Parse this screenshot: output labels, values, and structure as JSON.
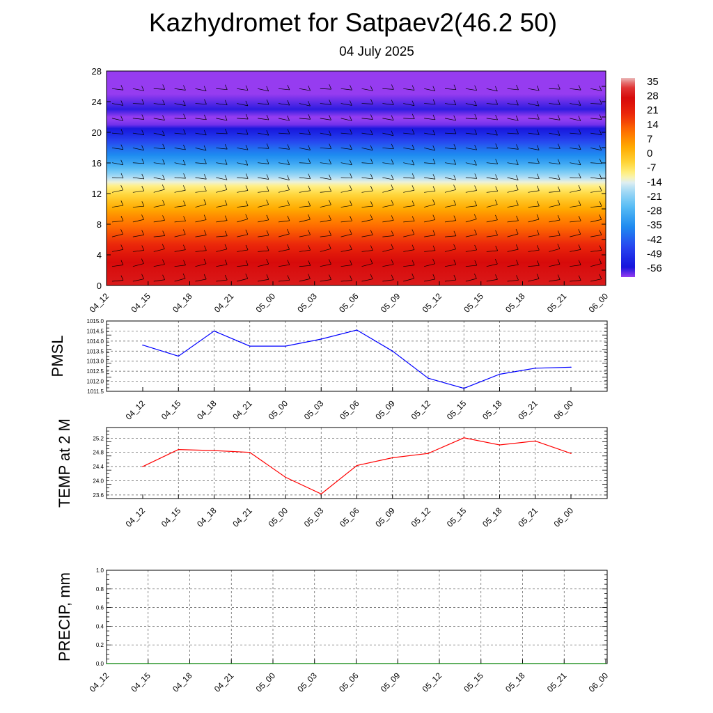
{
  "header": {
    "title": "Kazhydromet for Satpaev2(46.2 50)",
    "subtitle": "04 July 2025"
  },
  "chart_data": [
    {
      "type": "heatmap",
      "title": "",
      "x_ticks": [
        "04_12",
        "04_15",
        "04_18",
        "04_21",
        "05_00",
        "05_03",
        "05_06",
        "05_09",
        "05_12",
        "05_15",
        "05_18",
        "05_21",
        "06_00"
      ],
      "ylim": [
        0,
        28
      ],
      "y_ticks": [
        "0",
        "4",
        "8",
        "12",
        "16",
        "20",
        "24",
        "28"
      ],
      "levels_vs_temperature": [
        {
          "level": 0,
          "value": 30
        },
        {
          "level": 3,
          "value": 28
        },
        {
          "level": 6,
          "value": 18
        },
        {
          "level": 9,
          "value": 8
        },
        {
          "level": 11,
          "value": 0
        },
        {
          "level": 13.2,
          "value": -10
        },
        {
          "level": 14,
          "value": -16
        },
        {
          "level": 16,
          "value": -30
        },
        {
          "level": 18,
          "value": -40
        },
        {
          "level": 20,
          "value": -52
        },
        {
          "level": 21.5,
          "value": -62
        },
        {
          "level": 23,
          "value": -56
        },
        {
          "level": 25,
          "value": -60
        },
        {
          "level": 28,
          "value": -60
        }
      ],
      "colorbar_labels": [
        "35",
        "28",
        "21",
        "14",
        "7",
        "0",
        "-7",
        "-14",
        "-21",
        "-28",
        "-35",
        "-42",
        "-49",
        "-56"
      ],
      "colorbar_range": [
        -60,
        38
      ],
      "wind_barbs": true
    },
    {
      "type": "line",
      "ylabel": "PMSL",
      "x": [
        "04_12",
        "04_15",
        "04_18",
        "04_21",
        "05_00",
        "05_03",
        "05_06",
        "05_09",
        "05_12",
        "05_15",
        "05_18",
        "05_21",
        "06_00"
      ],
      "values": [
        1013.8,
        1013.25,
        1014.5,
        1013.75,
        1013.75,
        1014.1,
        1014.55,
        1013.5,
        1012.15,
        1011.65,
        1012.35,
        1012.65,
        1012.7
      ],
      "ylim": [
        1011.5,
        1015.0
      ],
      "y_ticks": [
        "1011.5",
        "1012.0",
        "1012.5",
        "1013.0",
        "1013.5",
        "1014.0",
        "1014.5",
        "1015.0"
      ],
      "color": "#0000ff",
      "grid": true
    },
    {
      "type": "line",
      "ylabel": "TEMP at 2 M",
      "x": [
        "04_12",
        "04_15",
        "04_18",
        "04_21",
        "05_00",
        "05_03",
        "05_06",
        "05_09",
        "05_12",
        "05_15",
        "05_18",
        "05_21",
        "06_00"
      ],
      "values": [
        24.4,
        24.88,
        24.85,
        24.8,
        24.1,
        23.63,
        24.43,
        24.65,
        24.77,
        25.21,
        25.01,
        25.12,
        24.77
      ],
      "ylim": [
        23.5,
        25.5
      ],
      "y_ticks": [
        "23.6",
        "24.0",
        "24.4",
        "24.8",
        "25.2"
      ],
      "color": "#ff0000",
      "grid": true
    },
    {
      "type": "line",
      "ylabel": "PRECIP, mm",
      "x_ticks": [
        "04_12",
        "04_15",
        "04_18",
        "04_21",
        "05_00",
        "05_03",
        "05_06",
        "05_09",
        "05_12",
        "05_15",
        "05_18",
        "05_21",
        "06_00"
      ],
      "values": [
        0,
        0,
        0,
        0,
        0,
        0,
        0,
        0,
        0,
        0,
        0,
        0,
        0
      ],
      "ylim": [
        0.0,
        1.0
      ],
      "y_ticks": [
        "0.0",
        "0.2",
        "0.4",
        "0.6",
        "0.8",
        "1.0"
      ],
      "color": "#008000",
      "grid": true
    }
  ]
}
